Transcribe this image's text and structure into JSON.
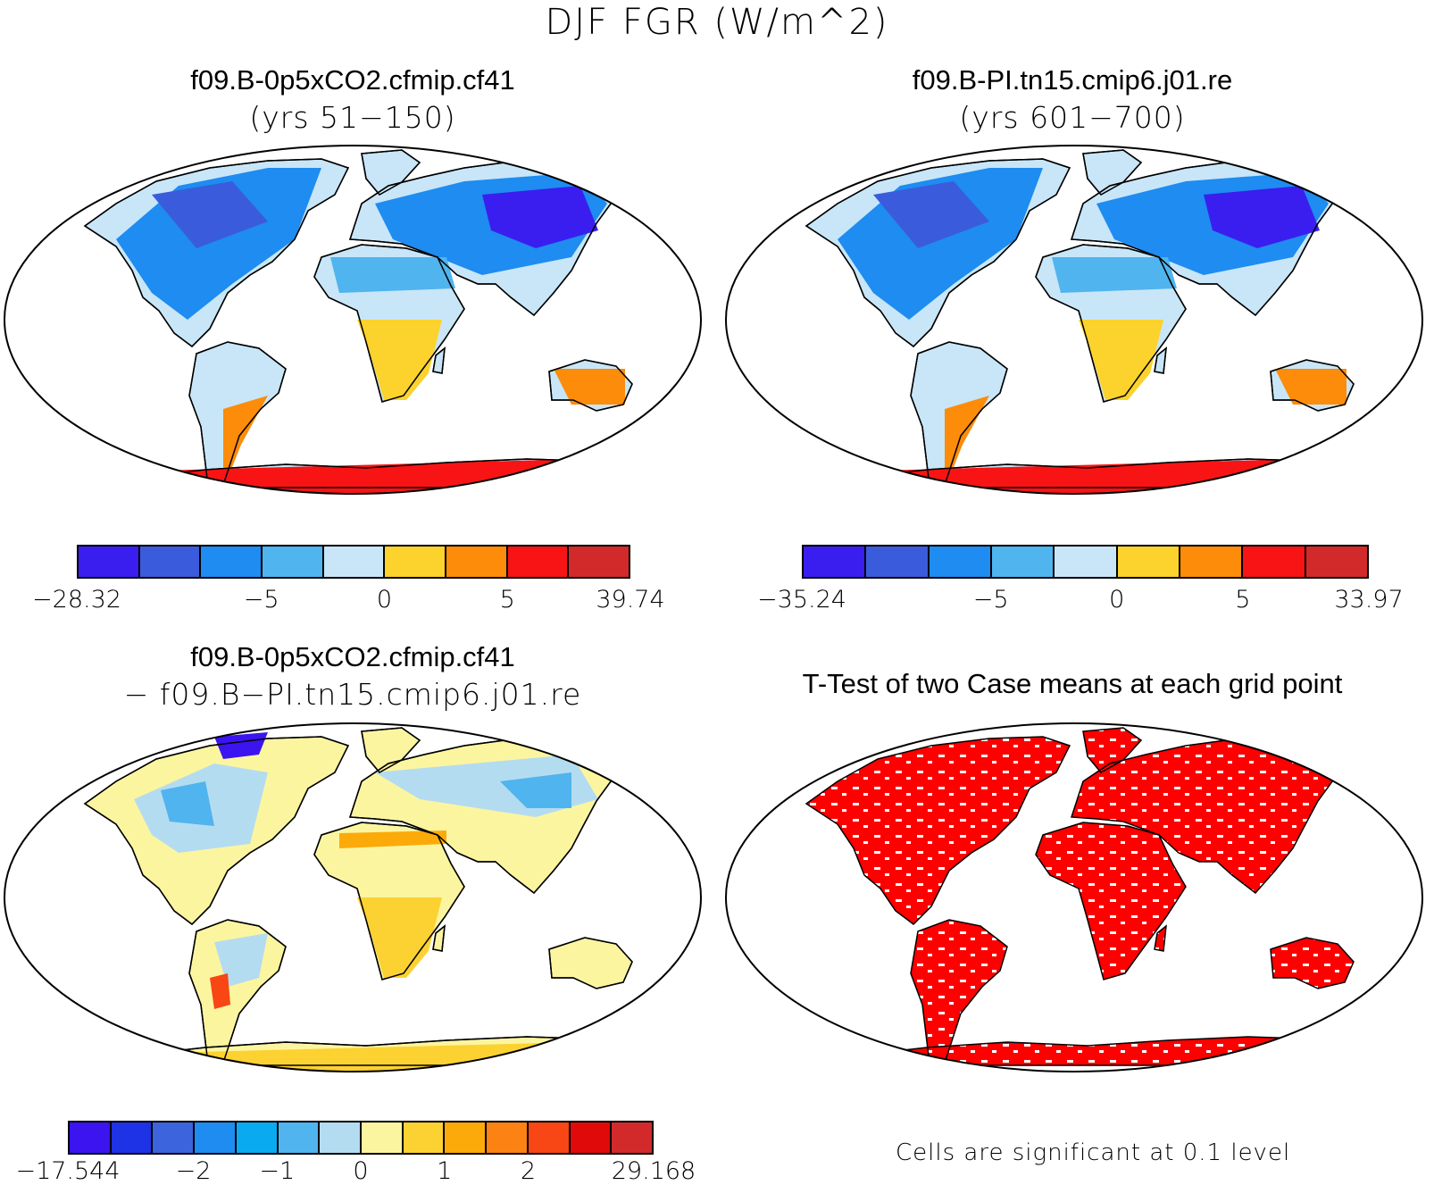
{
  "figure": {
    "title": "DJF FGR (W/m^2)"
  },
  "panels": [
    {
      "title": "f09.B-0p5xCO2.cfmip.cf41",
      "subtitle": "(yrs 51−150)",
      "colorbar": {
        "colors": [
          "#3a1ef0",
          "#3a5cdc",
          "#1e8cf0",
          "#50b4ee",
          "#c8e6f8",
          "#fcd22c",
          "#fc8c0a",
          "#f81414",
          "#d22a2a"
        ],
        "ticks": [
          {
            "label": "−28.32",
            "index": 0
          },
          {
            "label": "−5",
            "index": 3
          },
          {
            "label": "0",
            "index": 5
          },
          {
            "label": "5",
            "index": 7
          },
          {
            "label": "39.74",
            "index": 9
          }
        ]
      }
    },
    {
      "title": "f09.B-PI.tn15.cmip6.j01.re",
      "subtitle": "(yrs 601−700)",
      "colorbar": {
        "colors": [
          "#3a1ef0",
          "#3a5cdc",
          "#1e8cf0",
          "#50b4ee",
          "#c8e6f8",
          "#fcd22c",
          "#fc8c0a",
          "#f81414",
          "#d22a2a"
        ],
        "ticks": [
          {
            "label": "−35.24",
            "index": 0
          },
          {
            "label": "−5",
            "index": 3
          },
          {
            "label": "0",
            "index": 5
          },
          {
            "label": "5",
            "index": 7
          },
          {
            "label": "33.97",
            "index": 9
          }
        ]
      }
    },
    {
      "title": "f09.B-0p5xCO2.cfmip.cf41",
      "subtitle": "− f09.B−PI.tn15.cmip6.j01.re",
      "colorbar": {
        "colors": [
          "#3c14f0",
          "#1e32e6",
          "#3c64dc",
          "#1e8cf0",
          "#0aaaf0",
          "#50b4ee",
          "#b4dcf0",
          "#fcf5a0",
          "#fcd232",
          "#fcaa0a",
          "#fc8214",
          "#f84614",
          "#e00a0a",
          "#d22a2a"
        ],
        "ticks": [
          {
            "label": "−17.544",
            "index": 0
          },
          {
            "label": "−2",
            "index": 3
          },
          {
            "label": "−1",
            "index": 5
          },
          {
            "label": "0",
            "index": 7
          },
          {
            "label": "1",
            "index": 9
          },
          {
            "label": "2",
            "index": 11
          },
          {
            "label": "29.168",
            "index": 14
          }
        ]
      }
    },
    {
      "title": "T-Test of two Case means at each grid point",
      "note": "Cells are significant at 0.1 level"
    }
  ]
}
